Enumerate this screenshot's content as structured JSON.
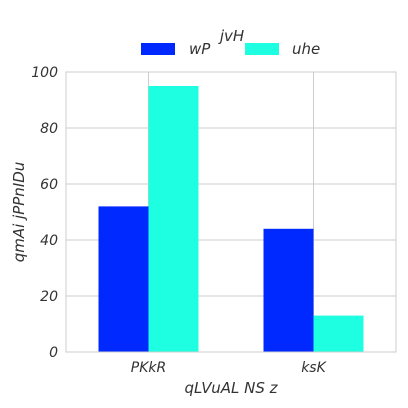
{
  "chart_data": {
    "type": "bar",
    "title": "",
    "xlabel": "qLVuAL NS z",
    "ylabel": "qmAi jPPnIDu",
    "categories": [
      "PKkR",
      "ksK"
    ],
    "series": [
      {
        "name": "wP",
        "values": [
          52,
          44
        ],
        "color": "#0029ff"
      },
      {
        "name": "uhe",
        "values": [
          95,
          13
        ],
        "color": "#1dffe0"
      }
    ],
    "ylim": [
      0,
      100
    ],
    "yticks": [
      0,
      20,
      40,
      60,
      80,
      100
    ],
    "grid": true,
    "legend": {
      "title": "jvH",
      "placement": "top-center",
      "columns": 2
    }
  }
}
